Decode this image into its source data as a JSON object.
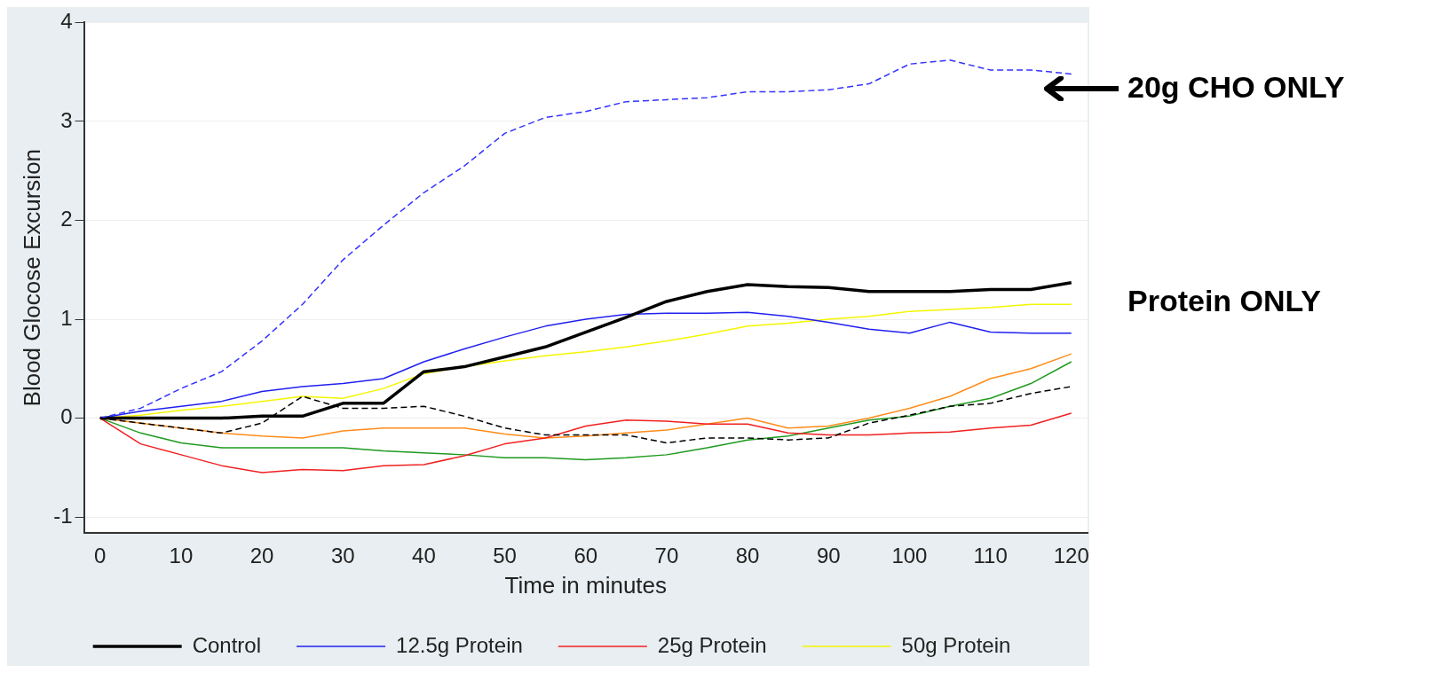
{
  "chart_data": {
    "type": "line",
    "xlabel": "Time in minutes",
    "ylabel": "Blood Glocose Excursion",
    "x": [
      0,
      5,
      10,
      15,
      20,
      25,
      30,
      35,
      40,
      45,
      50,
      55,
      60,
      65,
      70,
      75,
      80,
      85,
      90,
      95,
      100,
      105,
      110,
      115,
      120
    ],
    "xlim": [
      -2,
      122
    ],
    "xticks": [
      0,
      10,
      20,
      30,
      40,
      50,
      60,
      70,
      80,
      90,
      100,
      110,
      120
    ],
    "ylim": [
      -1.16,
      4
    ],
    "yticks": [
      -1,
      0,
      1,
      2,
      3,
      4
    ],
    "grid": "y",
    "legend": "bottom",
    "marker": "none",
    "series": [
      {
        "name": "Control",
        "color": "#000000",
        "line_style": "solid",
        "values": [
          0,
          0,
          0,
          0,
          0.02,
          0.02,
          0.15,
          0.15,
          0.47,
          0.52,
          0.62,
          0.72,
          0.87,
          1.02,
          1.18,
          1.28,
          1.35,
          1.33,
          1.32,
          1.28,
          1.28,
          1.28,
          1.3,
          1.3,
          1.37
        ]
      },
      {
        "name": "12.5g Protein",
        "color": "#2020f0",
        "line_style": "solid",
        "values": [
          0,
          0.07,
          0.12,
          0.17,
          0.27,
          0.32,
          0.35,
          0.4,
          0.57,
          0.7,
          0.82,
          0.93,
          1.0,
          1.05,
          1.06,
          1.06,
          1.07,
          1.03,
          0.97,
          0.9,
          0.86,
          0.97,
          0.87,
          0.86,
          0.86
        ]
      },
      {
        "name": "25g Protein",
        "color": "#f02020",
        "line_style": "solid",
        "values": [
          0,
          -0.26,
          -0.37,
          -0.48,
          -0.55,
          -0.52,
          -0.53,
          -0.48,
          -0.47,
          -0.38,
          -0.26,
          -0.2,
          -0.08,
          -0.02,
          -0.03,
          -0.06,
          -0.06,
          -0.15,
          -0.17,
          -0.17,
          -0.15,
          -0.14,
          -0.1,
          -0.07,
          0.05
        ]
      },
      {
        "name": "50g Protein",
        "color": "#f5f500",
        "line_style": "solid",
        "values": [
          0,
          0.03,
          0.08,
          0.12,
          0.17,
          0.22,
          0.2,
          0.3,
          0.45,
          0.52,
          0.58,
          0.63,
          0.67,
          0.72,
          0.78,
          0.85,
          0.93,
          0.96,
          1.0,
          1.03,
          1.08,
          1.1,
          1.12,
          1.15,
          1.15
        ]
      },
      {
        "color": "#ff8c1a",
        "line_style": "solid",
        "values": [
          0,
          -0.05,
          -0.1,
          -0.15,
          -0.18,
          -0.2,
          -0.13,
          -0.1,
          -0.1,
          -0.1,
          -0.16,
          -0.2,
          -0.18,
          -0.15,
          -0.12,
          -0.06,
          0,
          -0.1,
          -0.08,
          0,
          0.1,
          0.22,
          0.4,
          0.5,
          0.65
        ]
      },
      {
        "color": "#1f9a1f",
        "line_style": "solid",
        "values": [
          0,
          -0.15,
          -0.25,
          -0.3,
          -0.3,
          -0.3,
          -0.3,
          -0.33,
          -0.35,
          -0.37,
          -0.4,
          -0.4,
          -0.42,
          -0.4,
          -0.37,
          -0.3,
          -0.22,
          -0.18,
          -0.1,
          -0.02,
          0.02,
          0.12,
          0.2,
          0.35,
          0.57
        ]
      },
      {
        "color": "#000000",
        "line_style": "dashed",
        "values": [
          0,
          -0.05,
          -0.1,
          -0.15,
          -0.05,
          0.22,
          0.1,
          0.1,
          0.12,
          0.02,
          -0.1,
          -0.17,
          -0.17,
          -0.17,
          -0.25,
          -0.2,
          -0.2,
          -0.22,
          -0.2,
          -0.05,
          0.03,
          0.12,
          0.15,
          0.25,
          0.32
        ]
      },
      {
        "color": "#3333ff",
        "line_style": "dashed",
        "values": [
          0,
          0.1,
          0.3,
          0.47,
          0.78,
          1.15,
          1.6,
          1.95,
          2.28,
          2.55,
          2.88,
          3.04,
          3.1,
          3.2,
          3.22,
          3.24,
          3.3,
          3.3,
          3.32,
          3.38,
          3.58,
          3.62,
          3.52,
          3.52,
          3.48
        ]
      }
    ],
    "annotations": [
      "20g CHO ONLY",
      "Protein ONLY"
    ]
  }
}
